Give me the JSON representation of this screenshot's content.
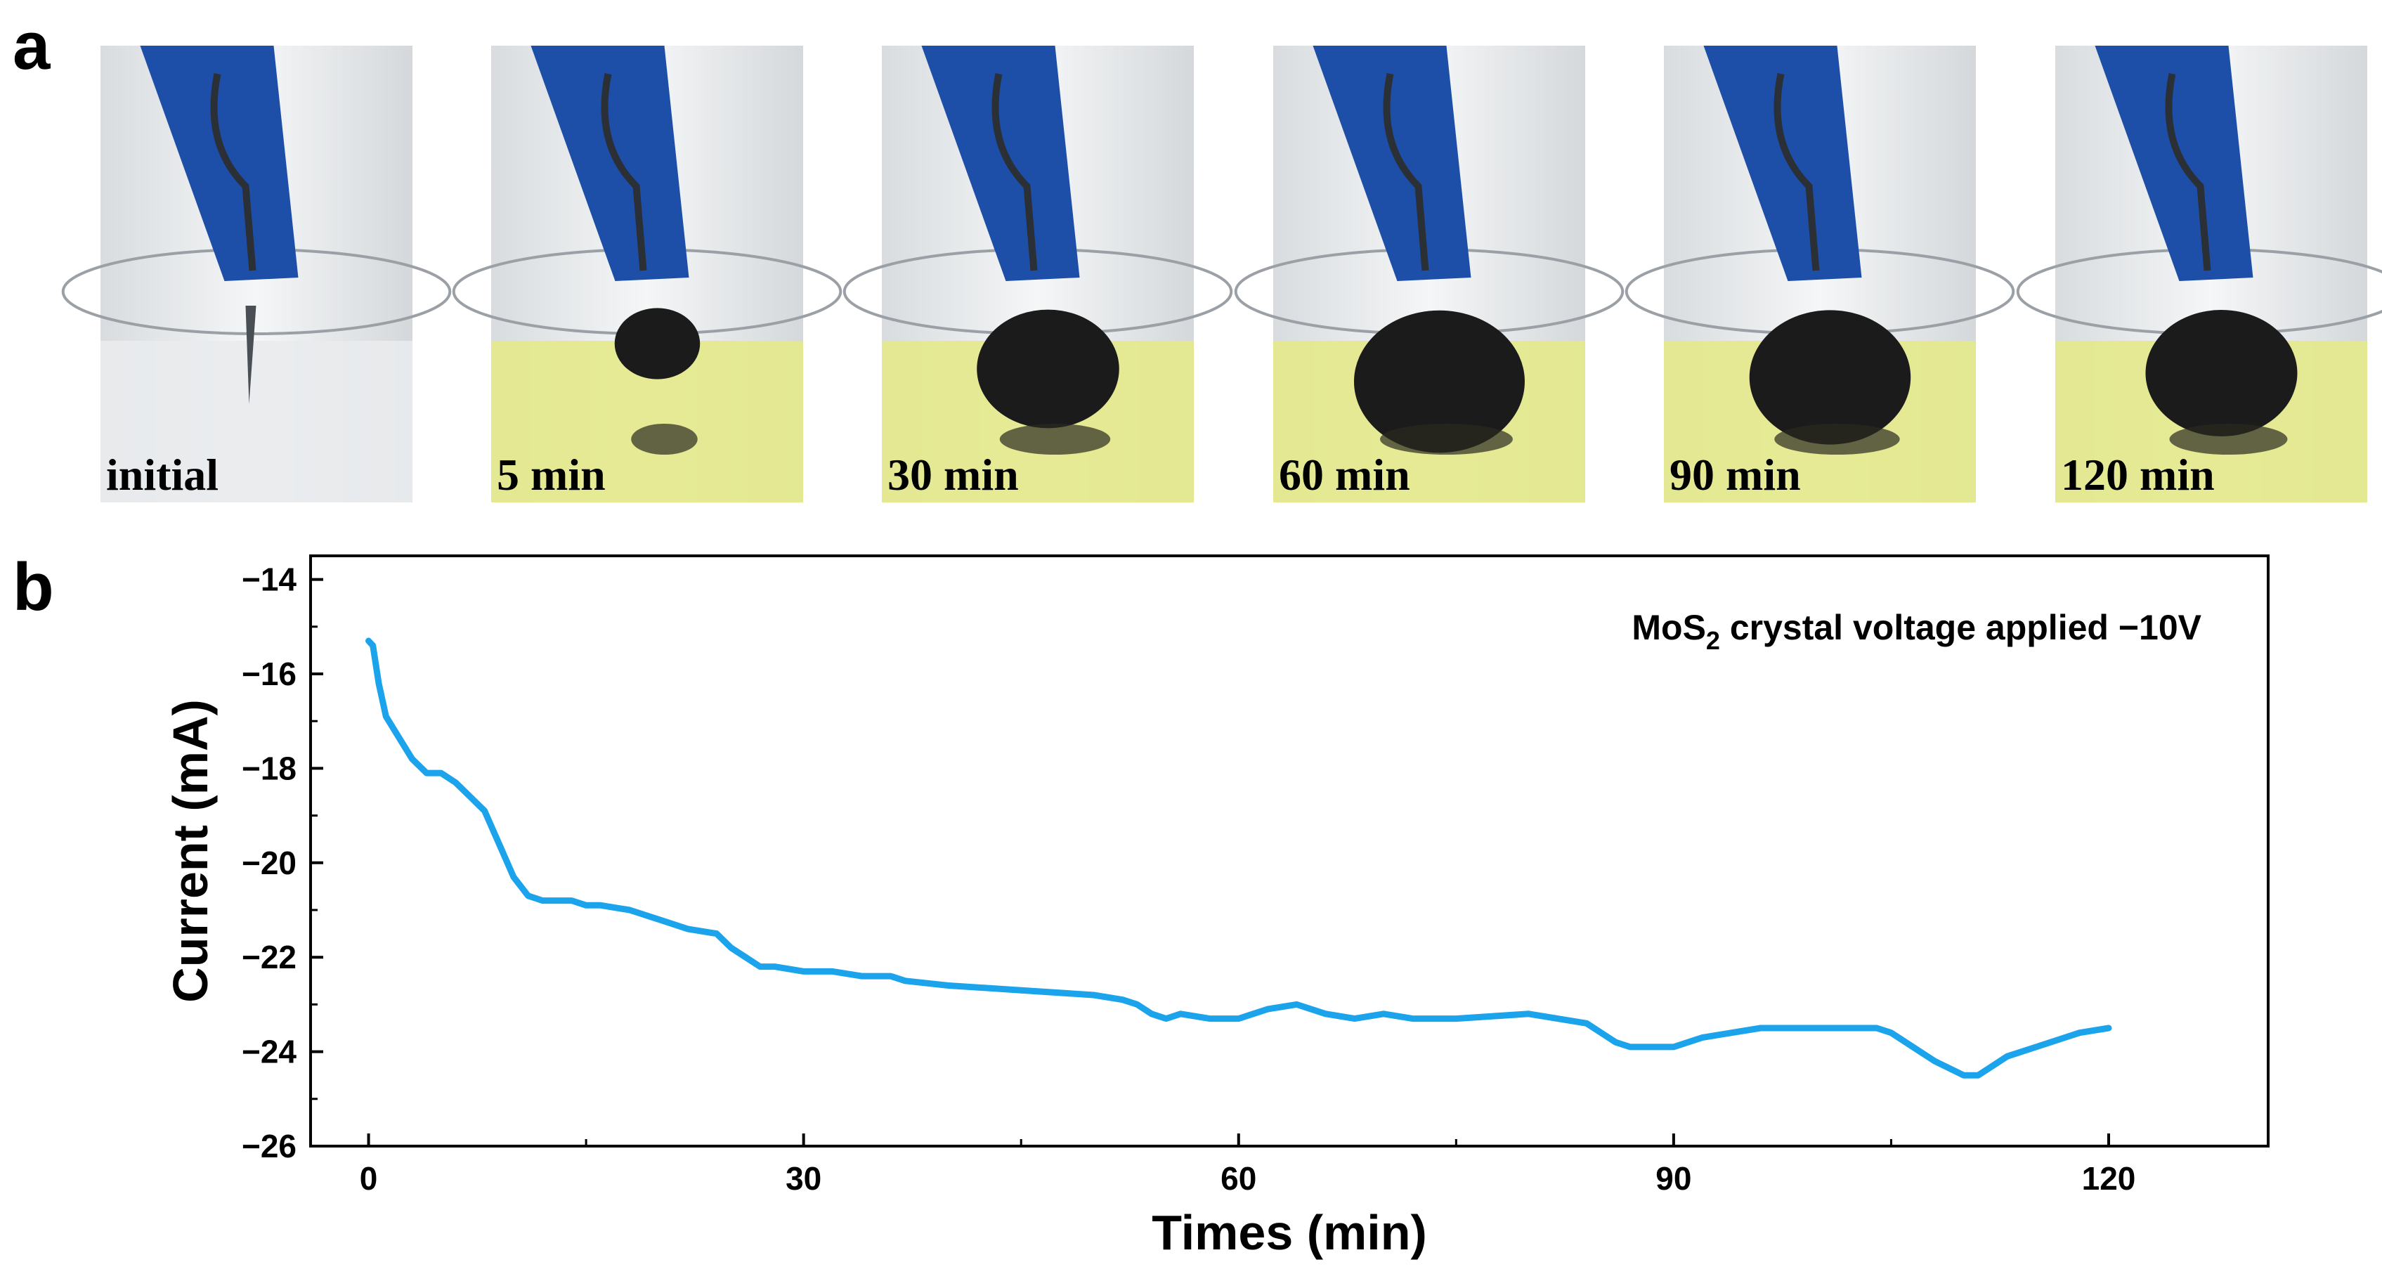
{
  "panels": {
    "a": "a",
    "b": "b"
  },
  "photos": [
    {
      "label": "initial",
      "solution": "clear",
      "flake_size": 0
    },
    {
      "label": "5 min",
      "solution": "yellow",
      "flake_size": 0.45
    },
    {
      "label": "30 min",
      "solution": "yellow",
      "flake_size": 0.75
    },
    {
      "label": "60 min",
      "solution": "yellow",
      "flake_size": 0.9
    },
    {
      "label": "90 min",
      "solution": "yellow",
      "flake_size": 0.85
    },
    {
      "label": "120 min",
      "solution": "yellow",
      "flake_size": 0.8
    }
  ],
  "colors": {
    "line": "#1ba3ec",
    "clip": "#1e4fa8",
    "solution": "#e4e98a",
    "flakes": "#1b1b1b"
  },
  "chart_data": {
    "type": "line",
    "annotation": {
      "prefix": "MoS",
      "subscript": "2",
      "suffix": " crystal voltage applied −10V"
    },
    "xlabel": "Times (min)",
    "ylabel": "Current (mA)",
    "xlim": [
      -4,
      131
    ],
    "ylim": [
      -26,
      -13.5
    ],
    "xticks": [
      0,
      30,
      60,
      90,
      120
    ],
    "xtick_labels": [
      "0",
      "30",
      "60",
      "90",
      "120"
    ],
    "yticks": [
      -14,
      -16,
      -18,
      -20,
      -22,
      -24,
      -26
    ],
    "ytick_labels": [
      "−14",
      "−16",
      "−18",
      "−20",
      "−22",
      "−24",
      "−26"
    ],
    "grid": false,
    "series": [
      {
        "x": [
          0,
          0.3,
          0.7,
          1.2,
          2,
          3,
          4,
          5,
          6,
          7,
          8,
          9,
          10,
          11,
          12,
          13,
          14,
          15,
          16,
          18,
          20,
          22,
          24,
          25,
          26,
          27,
          28,
          30,
          32,
          34,
          36,
          37,
          40,
          45,
          50,
          52,
          53,
          54,
          55,
          56,
          58,
          60,
          62,
          64,
          66,
          68,
          70,
          72,
          75,
          80,
          84,
          86,
          87,
          90,
          92,
          94,
          96,
          98,
          100,
          102,
          104,
          105,
          106,
          108,
          110,
          111,
          112,
          113,
          115,
          117,
          118,
          120
        ],
        "y": [
          -15.3,
          -15.4,
          -16.2,
          -16.9,
          -17.3,
          -17.8,
          -18.1,
          -18.1,
          -18.3,
          -18.6,
          -18.9,
          -19.6,
          -20.3,
          -20.7,
          -20.8,
          -20.8,
          -20.8,
          -20.9,
          -20.9,
          -21.0,
          -21.2,
          -21.4,
          -21.5,
          -21.8,
          -22.0,
          -22.2,
          -22.2,
          -22.3,
          -22.3,
          -22.4,
          -22.4,
          -22.5,
          -22.6,
          -22.7,
          -22.8,
          -22.9,
          -23.0,
          -23.2,
          -23.3,
          -23.2,
          -23.3,
          -23.3,
          -23.1,
          -23.0,
          -23.2,
          -23.3,
          -23.2,
          -23.3,
          -23.3,
          -23.2,
          -23.4,
          -23.8,
          -23.9,
          -23.9,
          -23.7,
          -23.6,
          -23.5,
          -23.5,
          -23.5,
          -23.5,
          -23.5,
          -23.6,
          -23.8,
          -24.2,
          -24.5,
          -24.5,
          -24.3,
          -24.1,
          -23.9,
          -23.7,
          -23.6,
          -23.5
        ]
      }
    ]
  }
}
